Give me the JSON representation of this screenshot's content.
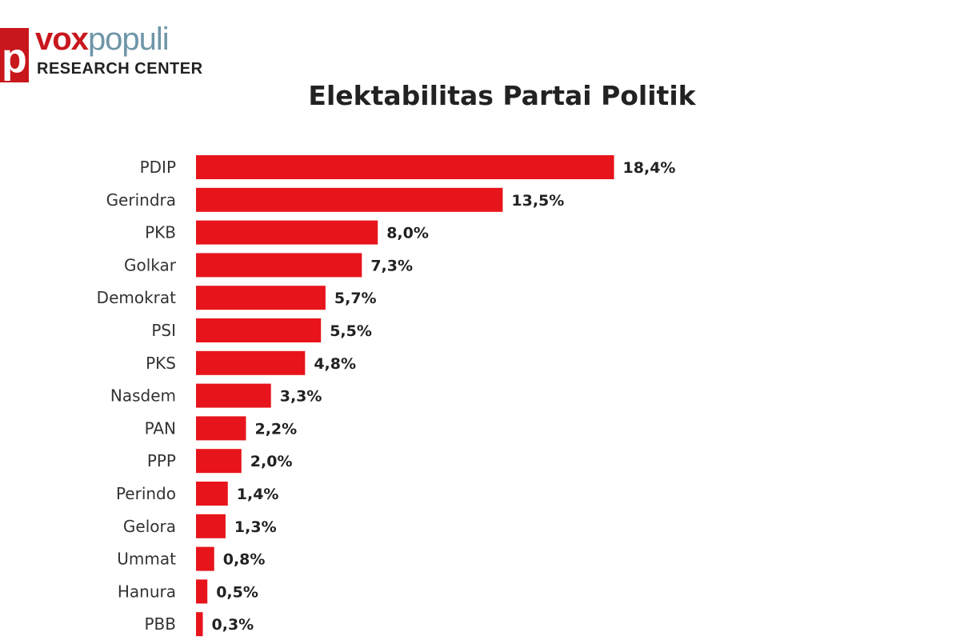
{
  "logo": {
    "mark": "p",
    "name_part1": "vox",
    "name_part2": "populi",
    "subtitle": "RESEARCH CENTER"
  },
  "chart_data": {
    "type": "bar",
    "orientation": "horizontal",
    "title": "Elektabilitas Partai Politik",
    "categories": [
      "PDIP",
      "Gerindra",
      "PKB",
      "Golkar",
      "Demokrat",
      "PSI",
      "PKS",
      "Nasdem",
      "PAN",
      "PPP",
      "Perindo",
      "Gelora",
      "Ummat",
      "Hanura",
      "PBB"
    ],
    "values": [
      18.4,
      13.5,
      8.0,
      7.3,
      5.7,
      5.5,
      4.8,
      3.3,
      2.2,
      2.0,
      1.4,
      1.3,
      0.8,
      0.5,
      0.3
    ],
    "data_labels": [
      "18,4%",
      "13,5%",
      "8,0%",
      "7,3%",
      "5,7%",
      "5,5%",
      "4,8%",
      "3,3%",
      "2,2%",
      "2,0%",
      "1,4%",
      "1,3%",
      "0,8%",
      "0,5%",
      "0,3%"
    ],
    "bar_color": "#e8141b",
    "grid": false,
    "legend": "none"
  }
}
